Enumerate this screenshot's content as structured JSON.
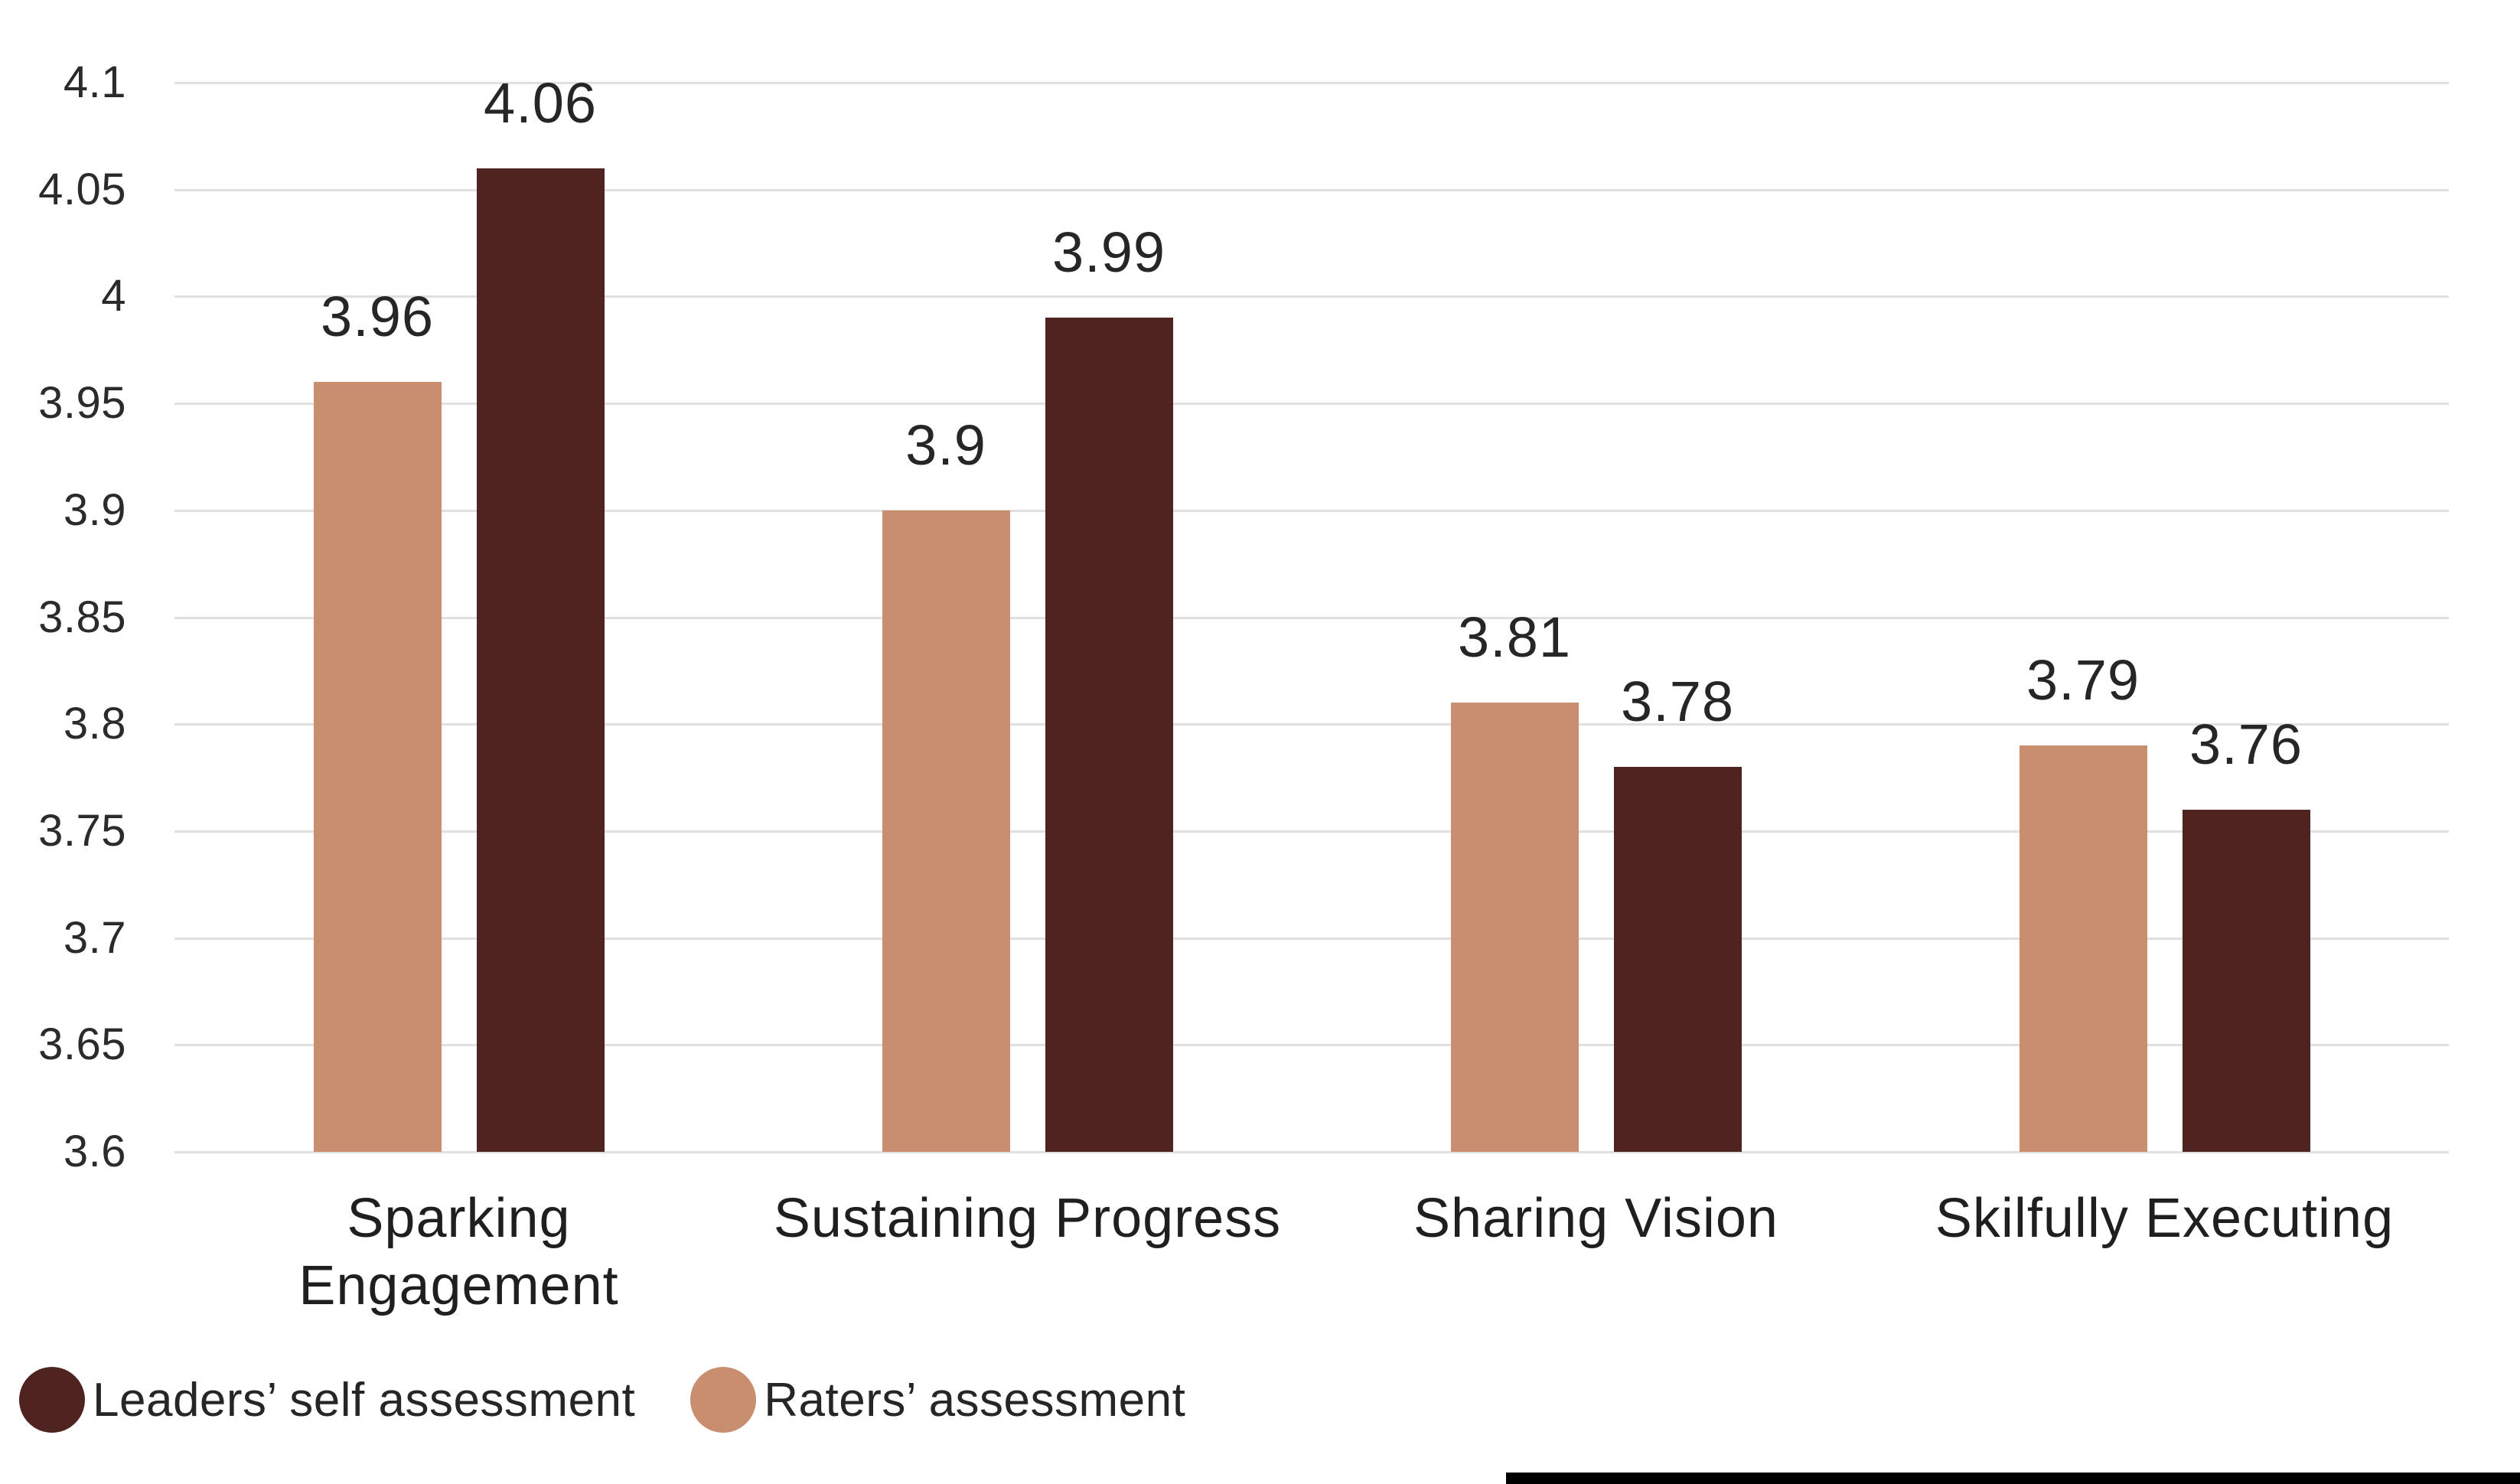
{
  "chart_data": {
    "type": "bar",
    "title": "",
    "xlabel": "",
    "ylabel": "",
    "categories": [
      "Sparking Engagement",
      "Sustaining Progress",
      "Sharing Vision",
      "Skilfully Executing"
    ],
    "category_lines": [
      [
        "Sparking",
        "Engagement"
      ],
      [
        "Sustaining Progress"
      ],
      [
        "Sharing Vision"
      ],
      [
        "Skilfully Executing"
      ]
    ],
    "series": [
      {
        "name": "Raters’ assessment",
        "color": "#C98E6F",
        "values": [
          3.96,
          3.9,
          3.81,
          3.79
        ],
        "labels": [
          "3.96",
          "3.9",
          "3.81",
          "3.79"
        ]
      },
      {
        "name": "Leaders’ self assessment",
        "color": "#4F2420",
        "values": [
          4.06,
          3.99,
          3.78,
          3.76
        ],
        "labels": [
          "4.06",
          "3.99",
          "3.78",
          "3.76"
        ]
      }
    ],
    "y_axis": {
      "min": 3.6,
      "max": 4.1,
      "tick_step": 0.05,
      "tick_labels": [
        "4.1",
        "4.05",
        "4",
        "3.95",
        "3.9",
        "3.85",
        "3.8",
        "3.75",
        "3.7",
        "3.65",
        "3.6"
      ]
    },
    "grid": true,
    "data_labels_shown": true,
    "legend": {
      "position": "bottom-left",
      "items": [
        {
          "label": "Leaders’ self assessment",
          "color": "#4F2420"
        },
        {
          "label": "Raters’ assessment",
          "color": "#C98E6F"
        }
      ]
    }
  },
  "style": {
    "background": "#FFFFFF",
    "gridline_color": "#E0E0E0",
    "tick_text_color": "#2B2B2B",
    "label_text_color": "#1F1F1F",
    "bottom_bar_color": "#000000"
  }
}
